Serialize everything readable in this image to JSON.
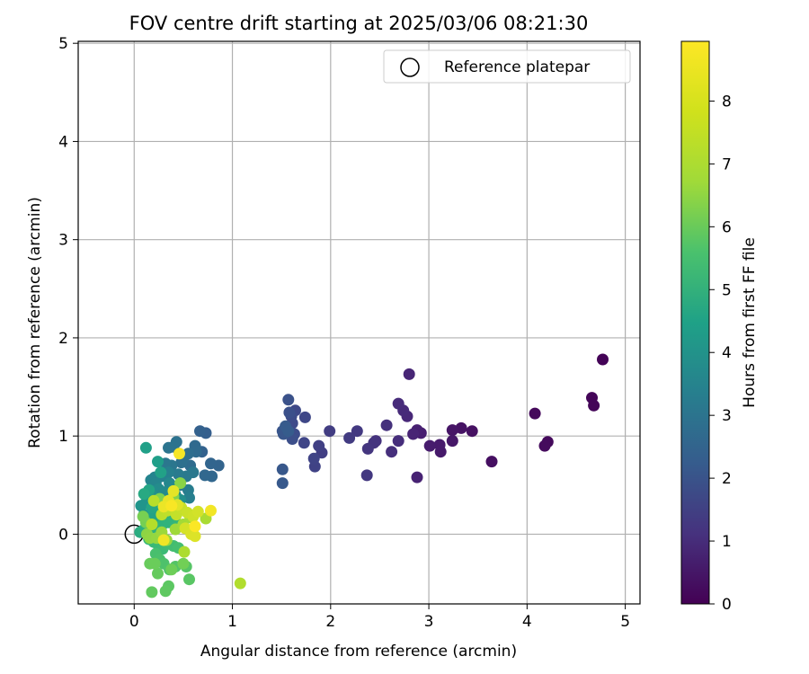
{
  "chart_data": {
    "type": "scatter",
    "title": "FOV centre drift starting at 2025/03/06 08:21:30",
    "xlabel": "Angular distance from reference (arcmin)",
    "ylabel": "Rotation from reference (arcmin)",
    "xlim": [
      -0.57,
      5.15
    ],
    "ylim": [
      -0.71,
      5.02
    ],
    "xticks": [
      0,
      1,
      2,
      3,
      4,
      5
    ],
    "yticks": [
      0,
      1,
      2,
      3,
      4,
      5
    ],
    "grid": true,
    "legend": {
      "placement": "top-right",
      "entries": [
        "Reference platepar"
      ]
    },
    "reference_point": {
      "x": 0,
      "y": 0
    },
    "colorbar": {
      "label": "Hours from first FF file",
      "colormap": "viridis",
      "range": [
        0,
        8.95
      ],
      "ticks": [
        0,
        1,
        2,
        3,
        4,
        5,
        6,
        7,
        8
      ]
    },
    "points": [
      [
        4.77,
        1.78,
        0.08
      ],
      [
        4.66,
        1.39,
        0.1
      ],
      [
        4.68,
        1.31,
        0.12
      ],
      [
        4.08,
        1.23,
        0.2
      ],
      [
        4.21,
        0.94,
        0.22
      ],
      [
        4.18,
        0.9,
        0.25
      ],
      [
        3.64,
        0.74,
        0.35
      ],
      [
        3.44,
        1.05,
        0.4
      ],
      [
        3.33,
        1.08,
        0.45
      ],
      [
        3.24,
        1.06,
        0.5
      ],
      [
        3.24,
        0.95,
        0.55
      ],
      [
        3.12,
        0.84,
        0.6
      ],
      [
        3.11,
        0.91,
        0.65
      ],
      [
        3.01,
        0.9,
        0.7
      ],
      [
        2.92,
        1.03,
        0.75
      ],
      [
        2.88,
        1.06,
        0.8
      ],
      [
        2.88,
        0.58,
        0.85
      ],
      [
        2.84,
        1.02,
        0.9
      ],
      [
        2.8,
        1.63,
        0.95
      ],
      [
        2.78,
        1.2,
        1.0
      ],
      [
        2.74,
        1.26,
        1.05
      ],
      [
        2.69,
        1.33,
        1.1
      ],
      [
        2.69,
        0.95,
        1.15
      ],
      [
        2.62,
        0.84,
        1.2
      ],
      [
        2.57,
        1.11,
        1.25
      ],
      [
        2.46,
        0.95,
        1.3
      ],
      [
        2.44,
        0.93,
        1.35
      ],
      [
        2.38,
        0.87,
        1.4
      ],
      [
        2.37,
        0.6,
        1.45
      ],
      [
        2.27,
        1.05,
        1.5
      ],
      [
        2.19,
        0.98,
        1.55
      ],
      [
        1.99,
        1.05,
        1.6
      ],
      [
        1.91,
        0.83,
        1.65
      ],
      [
        1.88,
        0.9,
        1.7
      ],
      [
        1.84,
        0.69,
        1.75
      ],
      [
        1.83,
        0.77,
        1.8
      ],
      [
        1.73,
        0.93,
        1.85
      ],
      [
        1.74,
        1.19,
        1.9
      ],
      [
        1.64,
        1.26,
        1.95
      ],
      [
        1.61,
        1.13,
        2.0
      ],
      [
        1.6,
        1.2,
        2.05
      ],
      [
        1.63,
        1.02,
        2.1
      ],
      [
        1.61,
        0.97,
        2.15
      ],
      [
        1.58,
        1.24,
        2.2
      ],
      [
        1.57,
        1.37,
        2.25
      ],
      [
        1.54,
        1.03,
        2.3
      ],
      [
        1.51,
        1.05,
        2.35
      ],
      [
        1.52,
        1.02,
        2.4
      ],
      [
        1.51,
        0.66,
        2.45
      ],
      [
        1.51,
        0.52,
        2.5
      ],
      [
        1.54,
        1.1,
        2.55
      ],
      [
        1.57,
        1.05,
        2.6
      ],
      [
        0.73,
        1.03,
        2.7
      ],
      [
        0.67,
        1.05,
        2.75
      ],
      [
        0.69,
        0.84,
        2.8
      ],
      [
        0.86,
        0.7,
        2.85
      ],
      [
        0.78,
        0.72,
        2.9
      ],
      [
        0.79,
        0.59,
        2.95
      ],
      [
        0.72,
        0.6,
        3.0
      ],
      [
        0.62,
        0.9,
        3.05
      ],
      [
        0.63,
        0.84,
        3.1
      ],
      [
        0.57,
        0.7,
        3.15
      ],
      [
        0.55,
        0.82,
        3.2
      ],
      [
        0.5,
        0.76,
        3.25
      ],
      [
        0.48,
        0.73,
        3.3
      ],
      [
        0.43,
        0.94,
        3.35
      ],
      [
        0.4,
        0.89,
        3.4
      ],
      [
        0.35,
        0.88,
        3.45
      ],
      [
        0.38,
        0.7,
        3.5
      ],
      [
        0.32,
        0.72,
        3.55
      ],
      [
        0.6,
        0.63,
        3.6
      ],
      [
        0.53,
        0.59,
        3.65
      ],
      [
        0.45,
        0.61,
        3.7
      ],
      [
        0.47,
        0.5,
        3.75
      ],
      [
        0.55,
        0.45,
        3.8
      ],
      [
        0.56,
        0.37,
        3.85
      ],
      [
        0.35,
        0.63,
        3.9
      ],
      [
        0.28,
        0.59,
        3.95
      ],
      [
        0.21,
        0.58,
        4.0
      ],
      [
        0.17,
        0.55,
        4.05
      ],
      [
        0.22,
        0.52,
        4.1
      ],
      [
        0.36,
        0.52,
        4.15
      ],
      [
        0.4,
        0.47,
        4.2
      ],
      [
        0.32,
        0.43,
        4.25
      ],
      [
        0.25,
        0.46,
        4.3
      ],
      [
        0.19,
        0.44,
        4.35
      ],
      [
        0.42,
        0.4,
        4.4
      ],
      [
        0.47,
        0.35,
        4.45
      ],
      [
        0.2,
        0.38,
        4.5
      ],
      [
        0.24,
        0.36,
        4.55
      ],
      [
        0.12,
        0.32,
        4.6
      ],
      [
        0.07,
        0.29,
        4.65
      ],
      [
        0.1,
        0.2,
        4.7
      ],
      [
        0.16,
        0.14,
        4.75
      ],
      [
        0.23,
        0.16,
        4.8
      ],
      [
        0.28,
        0.24,
        4.85
      ],
      [
        0.35,
        0.27,
        4.9
      ],
      [
        0.3,
        0.33,
        4.95
      ],
      [
        0.24,
        0.74,
        5.0
      ],
      [
        0.12,
        0.88,
        5.05
      ],
      [
        0.27,
        0.63,
        5.1
      ],
      [
        0.2,
        0.2,
        5.15
      ],
      [
        0.15,
        0.45,
        5.2
      ],
      [
        0.18,
        0.27,
        5.25
      ],
      [
        0.22,
        0.28,
        5.3
      ],
      [
        0.27,
        0.15,
        5.35
      ],
      [
        0.1,
        0.41,
        5.4
      ],
      [
        0.32,
        0.2,
        5.45
      ],
      [
        0.06,
        0.02,
        5.5
      ],
      [
        0.09,
        0.04,
        5.55
      ],
      [
        0.14,
        0.05,
        5.6
      ],
      [
        0.19,
        0.07,
        5.65
      ],
      [
        0.24,
        0.05,
        5.7
      ],
      [
        0.29,
        0.1,
        5.75
      ],
      [
        0.35,
        0.12,
        5.8
      ],
      [
        0.4,
        0.16,
        5.85
      ],
      [
        0.45,
        0.1,
        5.9
      ],
      [
        0.15,
        -0.05,
        5.95
      ],
      [
        0.2,
        -0.08,
        6.0
      ],
      [
        0.25,
        -0.12,
        6.05
      ],
      [
        0.29,
        -0.15,
        6.1
      ],
      [
        0.34,
        -0.1,
        6.15
      ],
      [
        0.4,
        -0.12,
        6.2
      ],
      [
        0.45,
        -0.14,
        6.25
      ],
      [
        0.22,
        -0.2,
        6.3
      ],
      [
        0.26,
        -0.26,
        6.35
      ],
      [
        0.3,
        -0.3,
        6.4
      ],
      [
        0.36,
        -0.36,
        6.45
      ],
      [
        0.42,
        -0.33,
        6.5
      ],
      [
        0.53,
        -0.33,
        6.55
      ],
      [
        0.56,
        -0.46,
        6.6
      ],
      [
        0.35,
        -0.53,
        6.65
      ],
      [
        0.32,
        -0.58,
        6.7
      ],
      [
        0.18,
        -0.59,
        6.75
      ],
      [
        0.24,
        -0.4,
        6.8
      ],
      [
        0.16,
        -0.3,
        6.85
      ],
      [
        0.21,
        -0.3,
        6.9
      ],
      [
        0.38,
        -0.36,
        6.95
      ],
      [
        0.5,
        -0.3,
        7.0
      ],
      [
        0.12,
        0.12,
        7.05
      ],
      [
        0.09,
        0.18,
        7.1
      ],
      [
        0.3,
        0.3,
        7.15
      ],
      [
        0.26,
        0.36,
        7.2
      ],
      [
        0.4,
        0.38,
        7.25
      ],
      [
        0.36,
        0.25,
        7.3
      ],
      [
        0.47,
        0.52,
        7.35
      ],
      [
        0.13,
        0.0,
        7.4
      ],
      [
        0.16,
        -0.04,
        7.45
      ],
      [
        0.23,
        -0.04,
        7.5
      ],
      [
        0.33,
        -0.06,
        7.55
      ],
      [
        0.28,
        0.02,
        7.6
      ],
      [
        0.42,
        0.05,
        7.65
      ],
      [
        0.5,
        0.1,
        7.7
      ],
      [
        0.57,
        0.17,
        7.75
      ],
      [
        0.73,
        0.16,
        7.8
      ],
      [
        0.51,
        -0.18,
        7.85
      ],
      [
        1.08,
        -0.5,
        7.9
      ],
      [
        0.18,
        0.1,
        7.95
      ],
      [
        0.2,
        0.34,
        8.0
      ],
      [
        0.28,
        0.2,
        8.05
      ],
      [
        0.34,
        0.24,
        8.1
      ],
      [
        0.43,
        0.2,
        8.15
      ],
      [
        0.48,
        0.27,
        8.2
      ],
      [
        0.54,
        0.22,
        8.25
      ],
      [
        0.6,
        0.18,
        8.3
      ],
      [
        0.65,
        0.23,
        8.35
      ],
      [
        0.52,
        0.06,
        8.4
      ],
      [
        0.58,
        0.0,
        8.45
      ],
      [
        0.62,
        -0.02,
        8.5
      ],
      [
        0.44,
        0.3,
        8.55
      ],
      [
        0.4,
        0.44,
        8.6
      ],
      [
        0.35,
        0.34,
        8.65
      ],
      [
        0.3,
        0.28,
        8.7
      ],
      [
        0.3,
        -0.06,
        8.75
      ],
      [
        0.78,
        0.24,
        8.8
      ],
      [
        0.46,
        0.82,
        8.85
      ],
      [
        0.38,
        0.29,
        8.88
      ],
      [
        0.62,
        0.08,
        8.92
      ]
    ]
  }
}
